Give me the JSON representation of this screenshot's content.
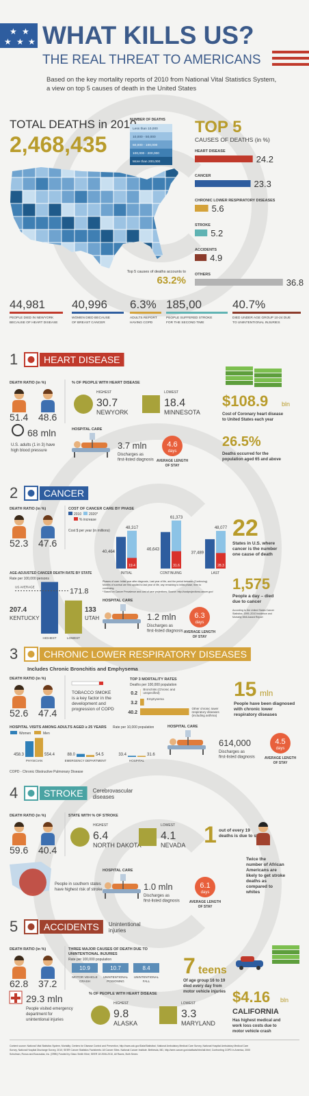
{
  "header": {
    "title": "WHAT KILLS US?",
    "subtitle": "THE REAL THREAT TO AMERICANS",
    "intro": [
      "Based on the key mortality reports of 2010 from National Vital Statistics System,",
      "a view on top 5 causes of death in the United States"
    ]
  },
  "overview": {
    "total_label": "TOTAL DEATHS in 2010",
    "total": "2,468,435",
    "legend_title": "NUMBER OF DEATHS",
    "legend": [
      "Less than 10,000",
      "10,000 - 50,000",
      "50,000 - 100,000",
      "100,000 - 200,000",
      "More than 200,000"
    ],
    "legend_colors": [
      "#c8dff0",
      "#9cc3e3",
      "#6fa3cf",
      "#3f7fb3",
      "#1f5a8a"
    ],
    "top5_note": "Top 5 causes of deaths accounts to",
    "top5_share": "63.2%"
  },
  "stats": [
    {
      "value": "44,981",
      "text": [
        "PEOPLE DIED IN NEWYORK",
        "BECAUSE OF HEART DISEASE"
      ],
      "color": "#c0392b"
    },
    {
      "value": "40,996",
      "text": [
        "WOMEN DIED BECAUSE",
        "OF BREAST CANCER"
      ],
      "color": "#2e5d9f"
    },
    {
      "value": "6.3%",
      "text": [
        "ADULTS REPORT",
        "HAVING COPD"
      ],
      "color": "#d4a23a"
    },
    {
      "value": "185,00",
      "text": [
        "PEOPLE SUFFERED STROKE",
        "FOR THE SECOND TIME"
      ],
      "color": "#5fb3b3"
    },
    {
      "value": "40.7%",
      "text": [
        "DIED UNDER AGE GROUP 10-24 DUE",
        "TO UNINTENTIONAL INJURIES"
      ],
      "color": "#8b3a2a"
    }
  ],
  "heart": {
    "num": "1",
    "title": "HEART DISEASE",
    "color": "#c0392b",
    "ratio_label": "DEATH RATIO (in %)",
    "ratio": [
      "51.4",
      "48.6"
    ],
    "states": {
      "label": "% OF PEOPLE WITH HEART DISEASE",
      "high": {
        "label": "HIGHEST",
        "value": "30.7",
        "state": "NEWYORK"
      },
      "low": {
        "label": "LOWEST",
        "value": "18.4",
        "state": "MINNESOTA"
      }
    },
    "cost": {
      "value": "$108.9",
      "unit": "bln",
      "text": [
        "Cost of Coronary heart disease",
        "to United States each year"
      ]
    },
    "bp": {
      "value": "68 mln",
      "text": [
        "U.S. adults (1 in 3) have",
        "high blood pressure"
      ]
    },
    "hospital": {
      "label": "HOSPITAL CARE",
      "value": "3.7 mln",
      "text": [
        "Discharges as",
        "first-listed diagnosis"
      ],
      "stay": "4.6",
      "unit": "days",
      "stay_label": [
        "AVERAGE LENGTH",
        "OF STAY"
      ]
    },
    "elderly": {
      "value": "26.5%",
      "text": [
        "Deaths occurred for the",
        "population aged 65 and above"
      ]
    }
  },
  "cancer": {
    "num": "2",
    "title": "CANCER",
    "color": "#2e5d9f",
    "ratio_label": "DEATH RATIO (in %)",
    "ratio": [
      "52.3",
      "47.6"
    ],
    "notes": [
      "Phases of care: Initial year after diagnosis, Last year of life, and the period between (Continuing).",
      "Months of survival are first applied to last year of life, any remaining to initial phase, then to",
      "continuing.",
      "* Based on Cancer Prevalence and cost of care projections; Source: http://costprojections.cancer.gov/"
    ],
    "states_count": {
      "value": "22",
      "text": [
        "States in U.S. where",
        "cancer is the number",
        "one cause of death"
      ]
    },
    "daily": {
      "value": "1,575",
      "text": [
        "People a day – died",
        "due to cancer"
      ],
      "source": [
        "According to the United States Cancer",
        "Statistics: 1999–2010 Incidence and",
        "Mortality Web-based Report"
      ]
    },
    "hospital": {
      "label": "HOSPITAL CARE",
      "value": "1.2 mln",
      "text": [
        "Discharges as",
        "first-listed diagnosis"
      ],
      "stay": "6.3",
      "unit": "days",
      "stay_label": [
        "AVERAGE LENGTH",
        "OF STAY"
      ]
    }
  },
  "copd": {
    "num": "3",
    "title": "CHRONIC LOWER RESPIRATORY DISEASES",
    "color": "#d4a23a",
    "subtitle": "Includes Chronic Bronchitis and Emphysema",
    "ratio_label": "DEATH RATIO (in %)",
    "ratio": [
      "52.6",
      "47.4"
    ],
    "tobacco": [
      "TOBACCO SMOKE",
      "is a key factor in the",
      "development and",
      "progression of COPD"
    ],
    "diagnosed": {
      "value": "15",
      "unit": "mln",
      "text": [
        "People have been diagnosed",
        "with chronic lower",
        "respiratory diseases"
      ]
    },
    "hospital": {
      "label": "HOSPITAL CARE",
      "value": "614,000",
      "text": [
        "Discharges as",
        "first-listed diagnosis"
      ],
      "stay": "4.5",
      "unit": "days",
      "stay_label": [
        "AVERAGE LENGTH",
        "OF STAY"
      ]
    },
    "footnote": "COPD - Chronic Obstructive Pulmonary Disease"
  },
  "stroke": {
    "num": "4",
    "title": "STROKE",
    "color": "#4aa3a3",
    "subtitle": [
      "Cerebrovascular",
      "diseases"
    ],
    "ratio_label": "DEATH RATIO (in %)",
    "ratio": [
      "59.6",
      "40.4"
    ],
    "states": {
      "label": "STATE WITH % OF STROKE",
      "high": {
        "label": "HIGHEST",
        "value": "6.4",
        "state": "NORTH DAKOTA"
      },
      "low": {
        "label": "LOWEST",
        "value": "4.1",
        "state": "NEVADA"
      }
    },
    "share": {
      "value": "1",
      "text": [
        "out of every 19",
        "deaths is due to stroke"
      ]
    },
    "south": [
      "People in southern states",
      "have highest risk of stroke"
    ],
    "african": [
      "Twice the",
      "number of African",
      "Americans are",
      "likely to get stroke",
      "deaths as",
      "compared to",
      "whites"
    ],
    "hospital": {
      "label": "HOSPITAL CARE",
      "value": "1.0 mln",
      "text": [
        "Discharges as",
        "first-listed diagnosis"
      ],
      "stay": "6.1",
      "unit": "days",
      "stay_label": [
        "AVERAGE LENGTH",
        "OF STAY"
      ]
    }
  },
  "accidents": {
    "num": "5",
    "title": "ACCIDENTS",
    "color": "#a0412d",
    "subtitle": [
      "Unintentional",
      "injuries"
    ],
    "ratio_label": "DEATH RATIO (in %)",
    "ratio": [
      "62.8",
      "37.2"
    ],
    "causes": {
      "label": [
        "THREE MAJOR CAUSES OF DEATH DUE TO",
        "UNINTENTIONAL INJURIES"
      ],
      "rate_label": "Rate per 100,000 population",
      "items": [
        {
          "value": "10.9",
          "label": [
            "MOTOR VEHICLE",
            "CRASH"
          ]
        },
        {
          "value": "10.7",
          "label": [
            "UNINTENTIONAL",
            "POISONING"
          ]
        },
        {
          "value": "8.4",
          "label": [
            "UNINTENTIONAL",
            "FALL"
          ]
        }
      ]
    },
    "teens": {
      "value": "7",
      "unit": "teens",
      "text": [
        "Of age group 16 to 19",
        "died every day from",
        "motor vehicle injuries"
      ]
    },
    "cost": {
      "value": "$4.16",
      "unit": "bln",
      "state": "CALIFORNIA",
      "text": [
        "Has highest medical and",
        "work loss costs due to",
        "motor vehicle crash"
      ]
    },
    "emergency": {
      "value": "29.3 mln",
      "text": [
        "People visited emergency",
        "department for",
        "unintentional injuries"
      ]
    },
    "states": {
      "label": "% OF PEOPLE WITH HEART DISEASE",
      "high": {
        "label": "HIGHEST",
        "value": "9.8",
        "state": "ALASKA"
      },
      "low": {
        "label": "LOWEST",
        "value": "3.3",
        "state": "MARYLAND"
      }
    }
  },
  "footer": [
    "Content source: National Vital Statistics System, Mortality; Centers for Disease Control and Prevention, http://www.cdc.gov/Data/Statistics/; National Ambulatory Medical Care Survey, National Hospital Ambulatory Medical Care",
    "Survey, National Hospital Discharge Survey, 2010; SEER Cancer Statistics Factsheets: All Cancer Sites. National Cancer Institute. Bethesda, MD, http://seer.cancer.gov/statfacts/html/all.html; Confronting COPD in America, 2000",
    "Schulman, Ronca and Bucuvalas, Inc. (SRBI) Funded by Glaxo Smith Kline; SEER 18 2006-2010, All Races, Both Sexes"
  ],
  "chart_data": [
    {
      "type": "bar",
      "orientation": "horizontal",
      "title": "TOP 5",
      "subtitle": "CAUSES OF DEATHS (in %)",
      "categories": [
        "HEART DISEASE",
        "CANCER",
        "CHRONIC LOWER RESPIRATORY DISEASES",
        "STROKE",
        "ACCIDENTS",
        "OTHERS"
      ],
      "values": [
        24.2,
        23.3,
        5.6,
        5.2,
        4.9,
        36.8
      ],
      "colors": [
        "#c0392b",
        "#2e5d9f",
        "#d4a23a",
        "#5fb3b3",
        "#8b3a2a",
        "#b3b3b3"
      ],
      "xlim": [
        0,
        40
      ]
    },
    {
      "type": "bar",
      "title": "COST OF CANCER CARE BY PHASE",
      "subtitle": "Cost $ per year (in millions)",
      "categories": [
        "INITIAL",
        "CONTINUING",
        "LAST"
      ],
      "series": [
        {
          "name": "2010",
          "color": "#2e5d9f",
          "values": [
            40464,
            46643,
            37489
          ],
          "value_labels": [
            "40,464",
            "46,643",
            "37,489"
          ]
        },
        {
          "name": "2020*",
          "color": "#8cc3e6",
          "values": [
            48317,
            61373,
            48077
          ],
          "value_labels": [
            "48,317",
            "61,373",
            "48,077"
          ]
        },
        {
          "name": "% increase",
          "color": "#d9312b",
          "axis": "y2",
          "values": [
            19.4,
            31.6,
            28.3
          ]
        }
      ],
      "ylim": [
        0,
        70000
      ],
      "y2lim": [
        0,
        100
      ]
    },
    {
      "type": "bar",
      "title": "AGE-ADJUSTED CANCER DEATH RATE BY STATE",
      "subtitle": "Rate per 100,000 persons",
      "categories": [
        "KENTUCKY",
        "UTAH"
      ],
      "values": [
        207.4,
        133
      ],
      "rank_labels": [
        "HIGHEST",
        "LOWEST"
      ],
      "colors": [
        "#2e5d9f",
        "#a8a23a"
      ],
      "reference": {
        "label": "US AVERAGE",
        "value": 171.8
      },
      "ylim": [
        0,
        220
      ]
    },
    {
      "type": "bar",
      "orientation": "horizontal",
      "title": "TOP 3 MORTALITY RATES",
      "subtitle": "Deaths per 100,000 population",
      "categories": [
        "Bronchitis (Chronic and unspecified)",
        "Emphysema",
        "Other chronic lower respiratory diseases (including asthma)"
      ],
      "values": [
        0.2,
        3.2,
        40.2
      ],
      "color": "#d4a23a",
      "xlim": [
        0,
        45
      ]
    },
    {
      "type": "bar",
      "title": "HOSPITAL VISITS AMONG ADULTS AGED ≥ 25 YEARS",
      "subtitle": "Rate per 10,000 population",
      "categories": [
        "PHYSICIAN",
        "EMERGENCY DEPARTMENT",
        "HOSPITAL"
      ],
      "series": [
        {
          "name": "Women",
          "color": "#2e7fb8",
          "values": [
            458.3,
            88.0,
            33.4
          ],
          "value_labels": [
            "458.3",
            "88.0",
            "33.4"
          ]
        },
        {
          "name": "Men",
          "color": "#d4a23a",
          "values": [
            554.4,
            54.5,
            31.6
          ]
        }
      ],
      "ylim": [
        0,
        600
      ]
    }
  ]
}
